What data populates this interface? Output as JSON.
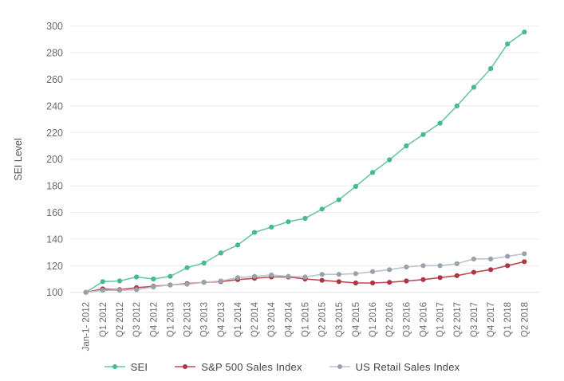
{
  "chart": {
    "y_axis_title": "SEI Level",
    "colors": {
      "grid": "#e9ebed",
      "baseline": "#dddfe1",
      "tick_text": "#6a6a6a",
      "axis_title_text": "#555555",
      "legend_text": "#3f454d",
      "background": "#ffffff"
    }
  },
  "chart_data": {
    "type": "line",
    "title": "",
    "xlabel": "",
    "ylabel": "SEI Level",
    "ylim": [
      95,
      305
    ],
    "yticks": [
      100,
      120,
      140,
      160,
      180,
      200,
      220,
      240,
      260,
      280,
      300
    ],
    "grid": true,
    "legend_position": "bottom",
    "x": [
      "Jan-1- 2012",
      "Q1 2012",
      "Q2 2012",
      "Q3 2012",
      "Q4 2012",
      "Q1 2013",
      "Q2 2013",
      "Q3 2013",
      "Q4 2013",
      "Q1 2014",
      "Q2 2014",
      "Q3 2014",
      "Q4 2014",
      "Q1 2015",
      "Q2 2015",
      "Q3 2015",
      "Q4 2015",
      "Q1 2016",
      "Q2 2016",
      "Q3 2016",
      "Q4 2016",
      "Q1 2017",
      "Q2 2017",
      "Q3 2017",
      "Q4 2017",
      "Q1 2018",
      "Q2 2018"
    ],
    "series": [
      {
        "name": "SEI",
        "line_color": "#6cc5a4",
        "marker_color": "#45b98f",
        "values": [
          100,
          108,
          108.5,
          111.5,
          110,
          112,
          118.5,
          122,
          129.5,
          135.5,
          145,
          149,
          153,
          155.5,
          162.5,
          169.5,
          179.5,
          190,
          199.5,
          210,
          218.5,
          227,
          240,
          254,
          268,
          286.5,
          295.5
        ]
      },
      {
        "name": "S&P 500 Sales Index",
        "line_color": "#bf4a54",
        "marker_color": "#a93844",
        "values": [
          100,
          102.5,
          102,
          103.5,
          104.5,
          105.5,
          106.5,
          107.5,
          108,
          109.5,
          110.5,
          111.5,
          111.5,
          110,
          109,
          108,
          107,
          107,
          107.5,
          108.5,
          109.5,
          111,
          112.5,
          115,
          117,
          120,
          123
        ]
      },
      {
        "name": "US Retail Sales Index",
        "line_color": "#bcc3ca",
        "marker_color": "#99a1ab",
        "values": [
          100,
          101.5,
          101.5,
          102,
          104,
          105.5,
          106,
          107.5,
          108.5,
          111,
          112,
          113,
          112,
          111.5,
          113.5,
          113.5,
          114,
          115.5,
          117,
          119,
          120,
          120,
          121.5,
          125,
          125,
          127,
          129
        ]
      }
    ]
  }
}
